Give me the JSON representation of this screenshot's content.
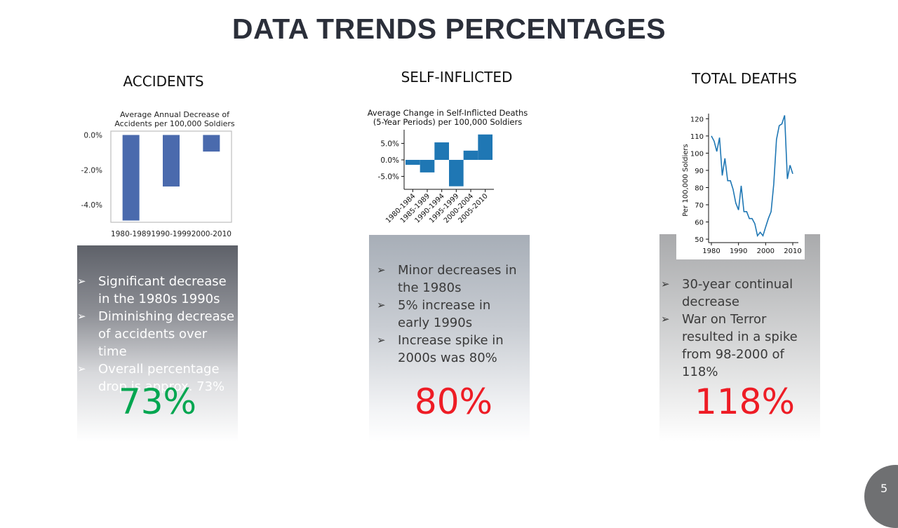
{
  "title": "DATA TRENDS PERCENTAGES",
  "page_number": "5",
  "columns": [
    {
      "heading": "ACCIDENTS",
      "bullets": [
        "Significant decrease in the 1980s 1990s",
        "Diminishing decrease of accidents over time",
        "Overall percentage drop is approx. 73%"
      ],
      "big_value": "73%",
      "big_color": "#00a650"
    },
    {
      "heading": "SELF-INFLICTED",
      "bullets": [
        "Minor decreases in the 1980s",
        "5% increase in early 1990s",
        "Increase spike in 2000s was 80%"
      ],
      "big_value": "80%",
      "big_color": "#ee1c25"
    },
    {
      "heading": "TOTAL DEATHS",
      "bullets": [
        "30-year continual decrease",
        "War on Terror resulted in a spike from 98-2000 of 118%"
      ],
      "big_value": "118%",
      "big_color": "#ee1c25"
    }
  ],
  "chart_data": [
    {
      "type": "bar",
      "title": "Average Annual Decrease of Accidents per 100,000 Soldiers",
      "title_lines": [
        "Average Annual Decrease of",
        "Accidents per 100,000 Soldiers"
      ],
      "categories": [
        "1980-1989",
        "1990-1999",
        "2000-2010"
      ],
      "values": [
        -4.9,
        -2.95,
        -0.95
      ],
      "yticks": [
        "0.0%",
        "-2.0%",
        "-4.0%"
      ],
      "ytick_values": [
        0,
        -2,
        -4
      ],
      "ylim": [
        -5.0,
        0.1
      ],
      "color": "#4a6aad",
      "xlabel": "",
      "ylabel": ""
    },
    {
      "type": "bar",
      "title": "Average Change in Self-Inflicted Deaths (5-Year Periods) per 100,000 Soldiers",
      "title_lines": [
        "Average Change in Self-Inflicted Deaths",
        "(5-Year Periods) per 100,000 Soldiers"
      ],
      "categories": [
        "1980-1984",
        "1985-1989",
        "1990-1994",
        "1995-1999",
        "2000-2004",
        "2005-2010"
      ],
      "values": [
        -1.5,
        -3.8,
        5.3,
        -8.0,
        2.8,
        7.7
      ],
      "yticks": [
        "5.0%",
        "0.0%",
        "-5.0%"
      ],
      "ytick_values": [
        5,
        0,
        -5
      ],
      "ylim": [
        -8.5,
        8.5
      ],
      "color": "#1f77b4",
      "xlabel": "",
      "ylabel": ""
    },
    {
      "type": "line",
      "title": "",
      "xlabel": "",
      "ylabel": "Per 100,000 Soldiers",
      "xlim": [
        1980,
        2010
      ],
      "ylim": [
        48,
        123
      ],
      "xticks": [
        1980,
        1990,
        2000,
        2010
      ],
      "yticks": [
        50,
        60,
        70,
        80,
        90,
        100,
        110,
        120
      ],
      "color": "#1f77b4",
      "x": [
        1980,
        1981,
        1982,
        1983,
        1984,
        1985,
        1986,
        1987,
        1988,
        1989,
        1990,
        1991,
        1992,
        1993,
        1994,
        1995,
        1996,
        1997,
        1998,
        1999,
        2000,
        2001,
        2002,
        2003,
        2004,
        2005,
        2006,
        2007,
        2008,
        2009,
        2010
      ],
      "y": [
        110,
        107,
        101,
        109,
        87,
        97,
        84,
        84,
        79,
        71,
        67,
        81,
        66,
        66,
        62,
        62,
        59,
        52,
        54,
        52,
        57,
        62,
        66,
        82,
        108,
        116,
        117,
        122,
        85,
        93,
        88
      ]
    }
  ]
}
